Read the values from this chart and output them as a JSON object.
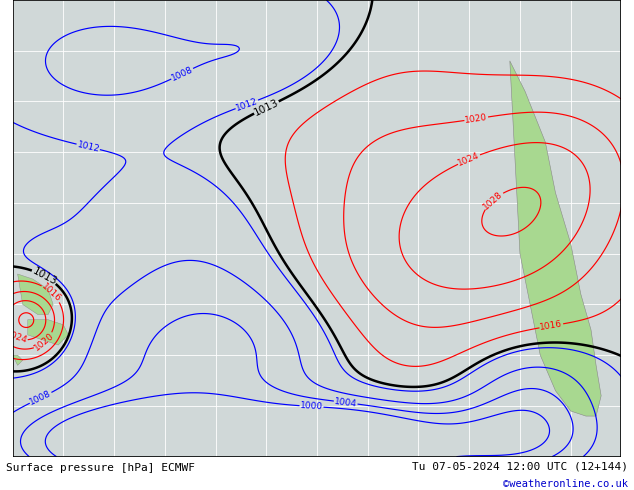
{
  "title": "Surface pressure [hPa] ECMWF",
  "date_label": "Tu 07-05-2024 12:00 UTC (12+144)",
  "copyright": "©weatheronline.co.uk",
  "background_color": "#d0d8d8",
  "land_color": "#a8d890",
  "grid_color": "#ffffff",
  "figsize": [
    6.34,
    4.9
  ],
  "dpi": 100,
  "bottom_bar_color": "#c8c8c8",
  "title_fontsize": 8,
  "date_fontsize": 8,
  "copyright_fontsize": 7.5,
  "copyright_color": "#0000cc"
}
